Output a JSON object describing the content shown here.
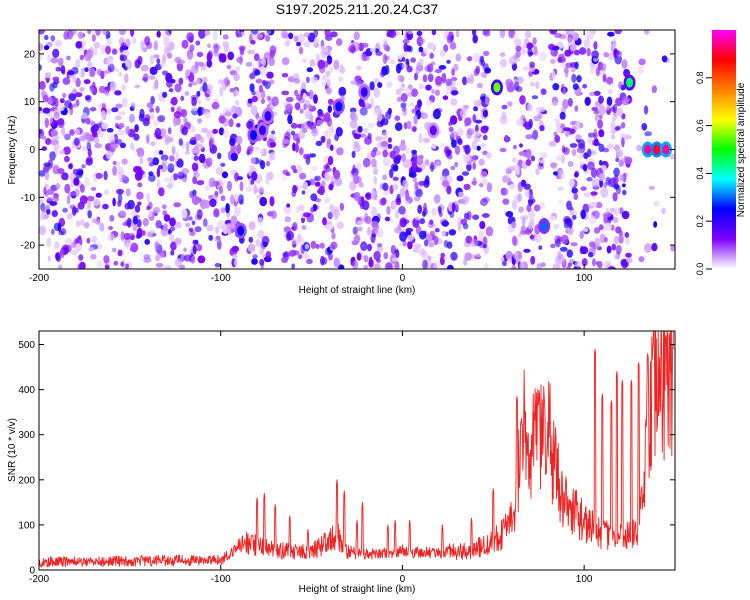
{
  "title": "S197.2025.211.20.24.C37",
  "chart_data": [
    {
      "type": "heatmap",
      "xlabel": "Height of straight line (km)",
      "ylabel": "Frequency (Hz)",
      "xlim": [
        -200,
        150
      ],
      "ylim": [
        -25,
        25
      ],
      "xticks": [
        -200,
        -100,
        0,
        100
      ],
      "yticks": [
        -20,
        -10,
        0,
        10,
        20
      ],
      "colorbar": {
        "label": "Normalized spectral amplitude",
        "range": [
          0,
          1
        ],
        "ticks": [
          0.0,
          0.2,
          0.4,
          0.6,
          0.8
        ],
        "colormap": [
          "#ffffff",
          "#8000ff",
          "#0000ff",
          "#00ffff",
          "#00ff00",
          "#ffff00",
          "#ff8000",
          "#ff0000",
          "#ff00ff"
        ]
      },
      "blank_bands_km": [
        [
          -88,
          -85
        ],
        [
          -70,
          -65
        ],
        [
          -33,
          -28
        ],
        [
          48,
          55
        ],
        [
          78,
          82
        ],
        [
          125,
          130
        ]
      ],
      "hotspots": [
        {
          "x": -89,
          "y": -17,
          "amp": 0.25
        },
        {
          "x": -82,
          "y": 3,
          "amp": 0.25
        },
        {
          "x": -77,
          "y": 4,
          "amp": 0.2
        },
        {
          "x": -74,
          "y": 7,
          "amp": 0.2
        },
        {
          "x": -35,
          "y": 9,
          "amp": 0.25
        },
        {
          "x": -21,
          "y": 12,
          "amp": 0.2
        },
        {
          "x": 17,
          "y": 4,
          "amp": 0.15
        },
        {
          "x": 52,
          "y": 13,
          "amp": 0.55
        },
        {
          "x": 78,
          "y": -16,
          "amp": 0.3
        },
        {
          "x": 125,
          "y": 14,
          "amp": 0.45
        },
        {
          "x": 135,
          "y": 0,
          "amp": 0.95
        },
        {
          "x": 140,
          "y": 0,
          "amp": 0.9
        },
        {
          "x": 145,
          "y": 0,
          "amp": 0.95
        }
      ]
    },
    {
      "type": "line",
      "xlabel": "Height of straight line (km)",
      "ylabel": "SNR (10 * v/v)",
      "xlim": [
        -200,
        150
      ],
      "ylim": [
        0,
        530
      ],
      "xticks": [
        -200,
        -100,
        0,
        100
      ],
      "yticks": [
        0,
        100,
        200,
        300,
        400,
        500
      ],
      "color": "#ee2222",
      "baseline_profile": [
        [
          -200,
          18
        ],
        [
          -100,
          22
        ],
        [
          -85,
          60
        ],
        [
          -70,
          45
        ],
        [
          -50,
          40
        ],
        [
          -36,
          75
        ],
        [
          -30,
          45
        ],
        [
          -20,
          35
        ],
        [
          0,
          40
        ],
        [
          20,
          38
        ],
        [
          40,
          45
        ],
        [
          55,
          80
        ],
        [
          62,
          120
        ],
        [
          66,
          330
        ],
        [
          72,
          270
        ],
        [
          79,
          330
        ],
        [
          84,
          230
        ],
        [
          90,
          150
        ],
        [
          100,
          110
        ],
        [
          110,
          80
        ],
        [
          120,
          70
        ],
        [
          130,
          80
        ],
        [
          138,
          430
        ],
        [
          150,
          450
        ]
      ],
      "peaks": [
        [
          -80,
          160
        ],
        [
          -76,
          170
        ],
        [
          -70,
          145
        ],
        [
          -62,
          120
        ],
        [
          -52,
          90
        ],
        [
          -36,
          200
        ],
        [
          -32,
          175
        ],
        [
          -25,
          110
        ],
        [
          -22,
          150
        ],
        [
          -8,
          100
        ],
        [
          -4,
          110
        ],
        [
          4,
          110
        ],
        [
          22,
          100
        ],
        [
          38,
          115
        ],
        [
          50,
          180
        ],
        [
          63,
          385
        ],
        [
          78,
          380
        ],
        [
          106,
          490
        ],
        [
          110,
          390
        ],
        [
          115,
          375
        ],
        [
          118,
          440
        ],
        [
          121,
          420
        ],
        [
          126,
          420
        ],
        [
          130,
          460
        ],
        [
          135,
          480
        ],
        [
          138,
          500
        ],
        [
          145,
          520
        ],
        [
          149,
          490
        ]
      ]
    }
  ]
}
